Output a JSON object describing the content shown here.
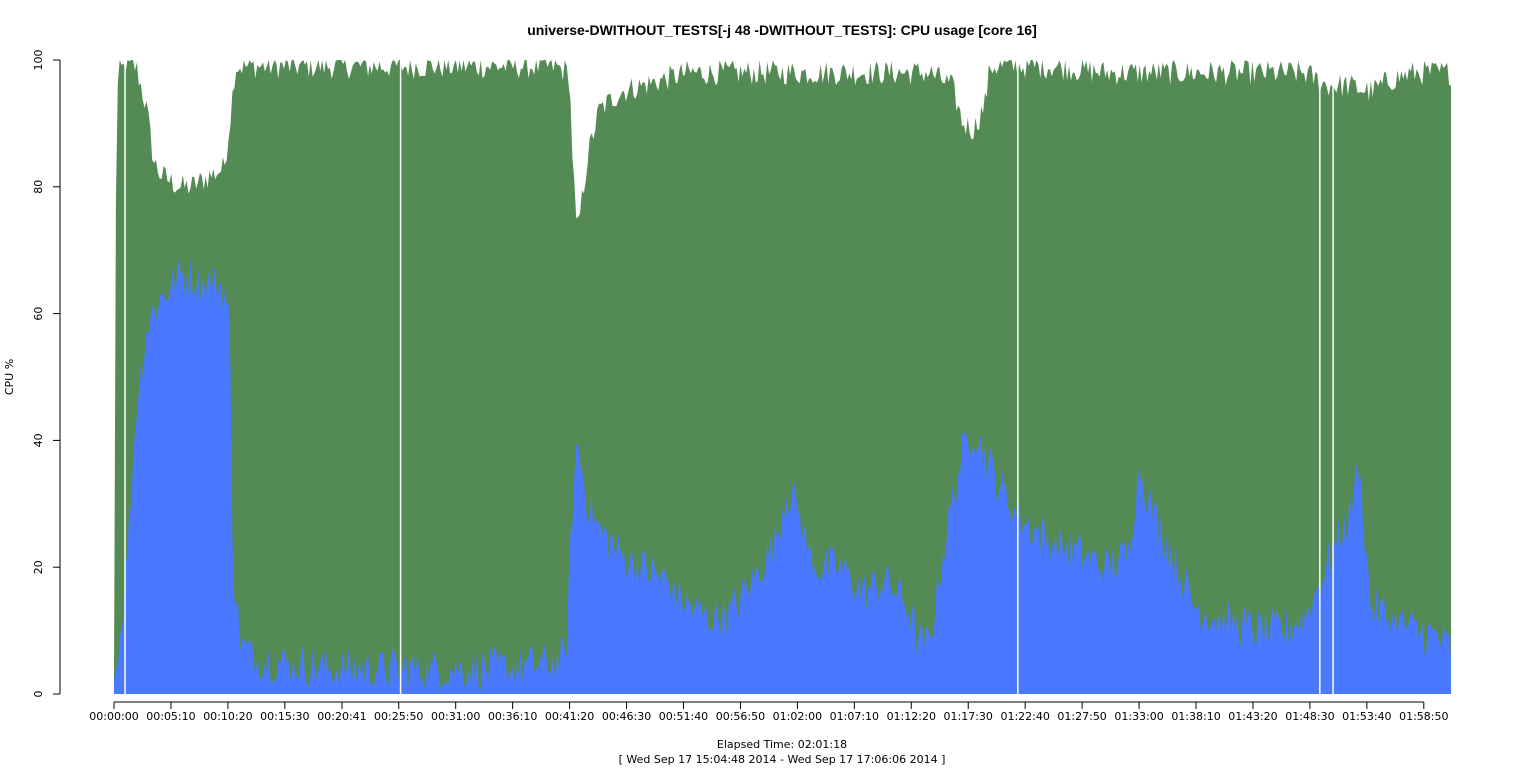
{
  "chart_data": {
    "type": "area",
    "title": "universe-DWITHOUT_TESTS[-j 48  -DWITHOUT_TESTS]: CPU usage [core 16]",
    "ylabel": "CPU %",
    "xlabel": "Elapsed Time: 02:01:18",
    "time_range": "[ Wed Sep 17 15:04:48 2014 - Wed Sep 17 17:06:06 2014 ]",
    "ylim": [
      0,
      100
    ],
    "y_ticks": [
      "0",
      "20",
      "40",
      "60",
      "80",
      "100"
    ],
    "x_ticks": [
      "00:00:00",
      "00:05:10",
      "00:10:20",
      "00:15:30",
      "00:20:41",
      "00:25:50",
      "00:31:00",
      "00:36:10",
      "00:41:20",
      "00:46:30",
      "00:51:40",
      "00:56:50",
      "01:02:00",
      "01:07:10",
      "01:12:20",
      "01:17:30",
      "01:22:40",
      "01:27:50",
      "01:33:00",
      "01:38:10",
      "01:43:20",
      "01:48:30",
      "01:53:40",
      "01:58:50"
    ],
    "x_tick_minutes": [
      0,
      5.167,
      10.333,
      15.5,
      20.683,
      25.833,
      31,
      36.167,
      41.333,
      46.5,
      51.667,
      56.833,
      62,
      67.167,
      72.333,
      77.5,
      82.667,
      87.833,
      93,
      98.167,
      103.333,
      108.5,
      113.667,
      118.833
    ],
    "x_range_minutes": [
      0,
      121.3
    ],
    "colors": {
      "lower": "#4a78ff",
      "upper": "#548b54",
      "gap": "#ffffff"
    },
    "series": [
      {
        "key": "total",
        "x": [
          0,
          0.2,
          0.4,
          1.0,
          1.5,
          2.0,
          3.0,
          3.6,
          4.2,
          5.0,
          6.0,
          7.0,
          8.0,
          9.0,
          10.0,
          10.5,
          11.0,
          12.0,
          15.0,
          20.0,
          25.0,
          30.0,
          35.0,
          40.0,
          41.3,
          41.6,
          42.0,
          43.0,
          44.0,
          46.0,
          48.0,
          50.0,
          52.0,
          56.0,
          60.0,
          65.0,
          70.0,
          74.0,
          76.0,
          77.0,
          78.0,
          79.0,
          79.5,
          80.0,
          85.0,
          90.0,
          95.0,
          100.0,
          105.0,
          108.0,
          110.0,
          112.0,
          114.0,
          116.0,
          118.0,
          120.0,
          121.3
        ],
        "values": [
          2,
          90,
          98,
          99,
          99,
          99,
          92,
          84,
          82,
          81,
          80,
          80,
          81,
          82,
          83,
          90,
          99,
          99,
          99,
          99,
          99,
          99,
          99,
          99,
          98,
          85,
          72,
          85,
          92,
          95,
          96,
          97,
          98,
          98,
          98,
          98,
          98,
          98,
          96,
          90,
          89,
          93,
          99,
          99,
          99,
          98,
          98,
          98,
          98,
          98,
          96,
          96,
          95,
          97,
          98,
          98,
          98
        ]
      },
      {
        "key": "lower",
        "x": [
          0,
          0.2,
          0.6,
          1.0,
          1.5,
          2.0,
          3.0,
          4.0,
          5.0,
          6.0,
          7.0,
          8.0,
          9.0,
          10.0,
          10.5,
          10.8,
          11.5,
          12.5,
          15.0,
          20.0,
          25.0,
          30.0,
          35.0,
          40.0,
          41.0,
          41.6,
          42.0,
          43.0,
          44.0,
          46.0,
          48.0,
          50.0,
          52.0,
          54.0,
          56.0,
          58.0,
          60.0,
          61.0,
          62.0,
          63.0,
          64.0,
          66.0,
          68.0,
          70.0,
          72.0,
          73.0,
          74.0,
          75.0,
          76.0,
          77.0,
          78.0,
          79.0,
          80.0,
          82.0,
          85.0,
          88.0,
          90.0,
          92.0,
          93.0,
          94.0,
          96.0,
          98.0,
          100.0,
          102.0,
          104.0,
          106.0,
          108.0,
          110.0,
          112.0,
          113.0,
          114.0,
          116.0,
          118.0,
          120.0,
          121.3
        ],
        "values": [
          2,
          5,
          10,
          18,
          30,
          45,
          58,
          62,
          64,
          66,
          66,
          65,
          65,
          64,
          58,
          20,
          8,
          6,
          5,
          4,
          4,
          4,
          4,
          5,
          6,
          30,
          40,
          30,
          26,
          22,
          20,
          18,
          14,
          12,
          13,
          18,
          24,
          32,
          30,
          22,
          20,
          20,
          16,
          18,
          14,
          8,
          8,
          20,
          30,
          38,
          42,
          38,
          34,
          28,
          24,
          22,
          20,
          22,
          36,
          30,
          22,
          14,
          12,
          11,
          10,
          10,
          12,
          20,
          28,
          36,
          14,
          12,
          10,
          9,
          7
        ]
      }
    ],
    "gaps_minutes": [
      1.0,
      26.0,
      82.0,
      109.4,
      110.6
    ]
  }
}
